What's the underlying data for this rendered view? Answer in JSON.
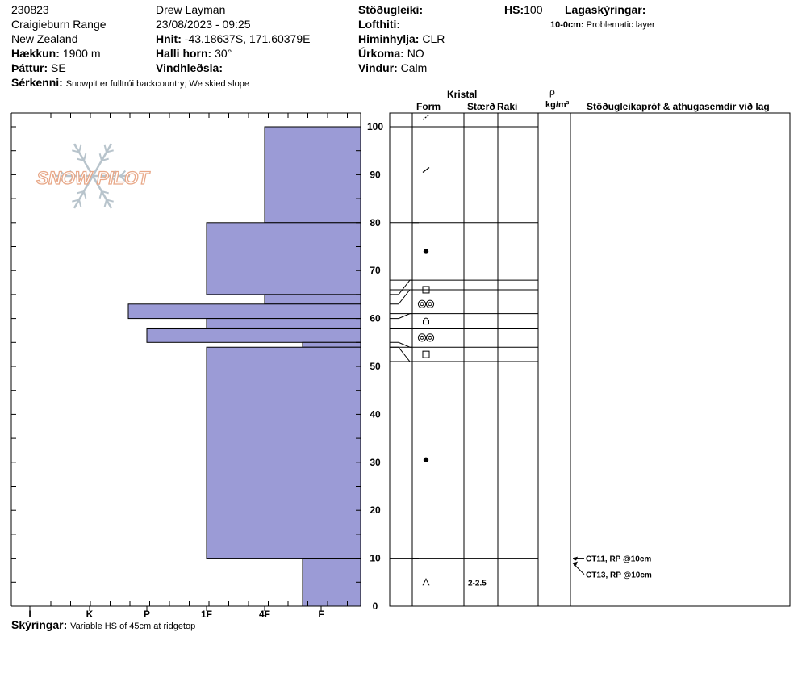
{
  "header": {
    "pit_id": "230823",
    "location": "Craigieburn Range",
    "region": "New Zealand",
    "elevation_label": "Hækkun:",
    "elevation": "1900 m",
    "aspect_label": "Þáttur:",
    "aspect": "SE",
    "features_label": "Sérkenni:",
    "features": "Snowpit er fulltrúi backcountry; We skied slope",
    "observer": "Drew Layman",
    "datetime": "23/08/2023 - 09:25",
    "coords_label": "Hnit:",
    "coords": "-43.18637S, 171.60379E",
    "slope_label": "Halli horn:",
    "slope": "30°",
    "wind_loading_label": "Vindhleðsla:",
    "stability_label": "Stöðugleiki:",
    "air_temp_label": "Lofthiti:",
    "sky_label": "Himinhylja:",
    "sky": "CLR",
    "precip_label": "Úrkoma:",
    "precip": "NO",
    "wind_label": "Vindur:",
    "wind": "Calm",
    "hs_label": "HS:",
    "hs": "100",
    "legend_label": "Lagaskýringar:",
    "legend_entry_range": "10-0cm:",
    "legend_entry_text": "Problematic layer"
  },
  "table_headers": {
    "kristal": "Kristal",
    "form": "Form",
    "size": "Stærð",
    "moisture": "Raki",
    "rho": "ρ",
    "density_unit": "kg/m³",
    "tests": "Stöðugleikapróf & athugasemdir við lag"
  },
  "footer": {
    "notes_label": "Skýringar:",
    "notes": "Variable HS of 45cm at ridgetop"
  },
  "logo_text": "SNOW PILOT",
  "colors": {
    "bar_fill": "#9b9bd6",
    "bar_stroke": "#000000",
    "logo": "#e8a888",
    "flake": "#b8c4cc"
  },
  "chart_data": {
    "type": "bar",
    "title": "",
    "xlabel": "",
    "ylabel": "",
    "hardness_ticks": [
      "I",
      "K",
      "P",
      "1F",
      "4F",
      "F"
    ],
    "depth_ticks": [
      0,
      10,
      20,
      30,
      40,
      50,
      60,
      70,
      80,
      90,
      100
    ],
    "ylim": [
      0,
      100
    ],
    "hardness_layers": [
      {
        "top": 100,
        "bottom": 80,
        "hardness": "4F"
      },
      {
        "top": 80,
        "bottom": 65,
        "hardness": "1F"
      },
      {
        "top": 65,
        "bottom": 63,
        "hardness": "4F"
      },
      {
        "top": 63,
        "bottom": 60,
        "hardness": "P+"
      },
      {
        "top": 60,
        "bottom": 58,
        "hardness": "1F"
      },
      {
        "top": 58,
        "bottom": 55,
        "hardness": "P"
      },
      {
        "top": 55,
        "bottom": 54,
        "hardness": "F+"
      },
      {
        "top": 54,
        "bottom": 10,
        "hardness": "1F"
      },
      {
        "top": 10,
        "bottom": 0,
        "hardness": "F+"
      }
    ],
    "layer_lines": [
      100,
      80,
      68,
      66,
      61,
      58,
      54,
      51,
      10
    ],
    "grain_symbols": [
      {
        "depth": 102,
        "symbol": "ppd"
      },
      {
        "depth": 91,
        "symbol": "df"
      },
      {
        "depth": 74,
        "symbol": "rg"
      },
      {
        "depth": 66,
        "symbol": "fc"
      },
      {
        "depth": 63,
        "symbol": "mf"
      },
      {
        "depth": 59.5,
        "symbol": "fcxr"
      },
      {
        "depth": 56,
        "symbol": "mf"
      },
      {
        "depth": 52.5,
        "symbol": "fc"
      },
      {
        "depth": 30.5,
        "symbol": "rg"
      },
      {
        "depth": 5,
        "symbol": "dh"
      }
    ],
    "grain_size": [
      {
        "depth": 5,
        "value": "2-2.5"
      }
    ],
    "tests": [
      {
        "depth": 10,
        "text": "CT11, RP @10cm"
      },
      {
        "depth": 10,
        "text": "CT13, RP @10cm"
      }
    ]
  }
}
